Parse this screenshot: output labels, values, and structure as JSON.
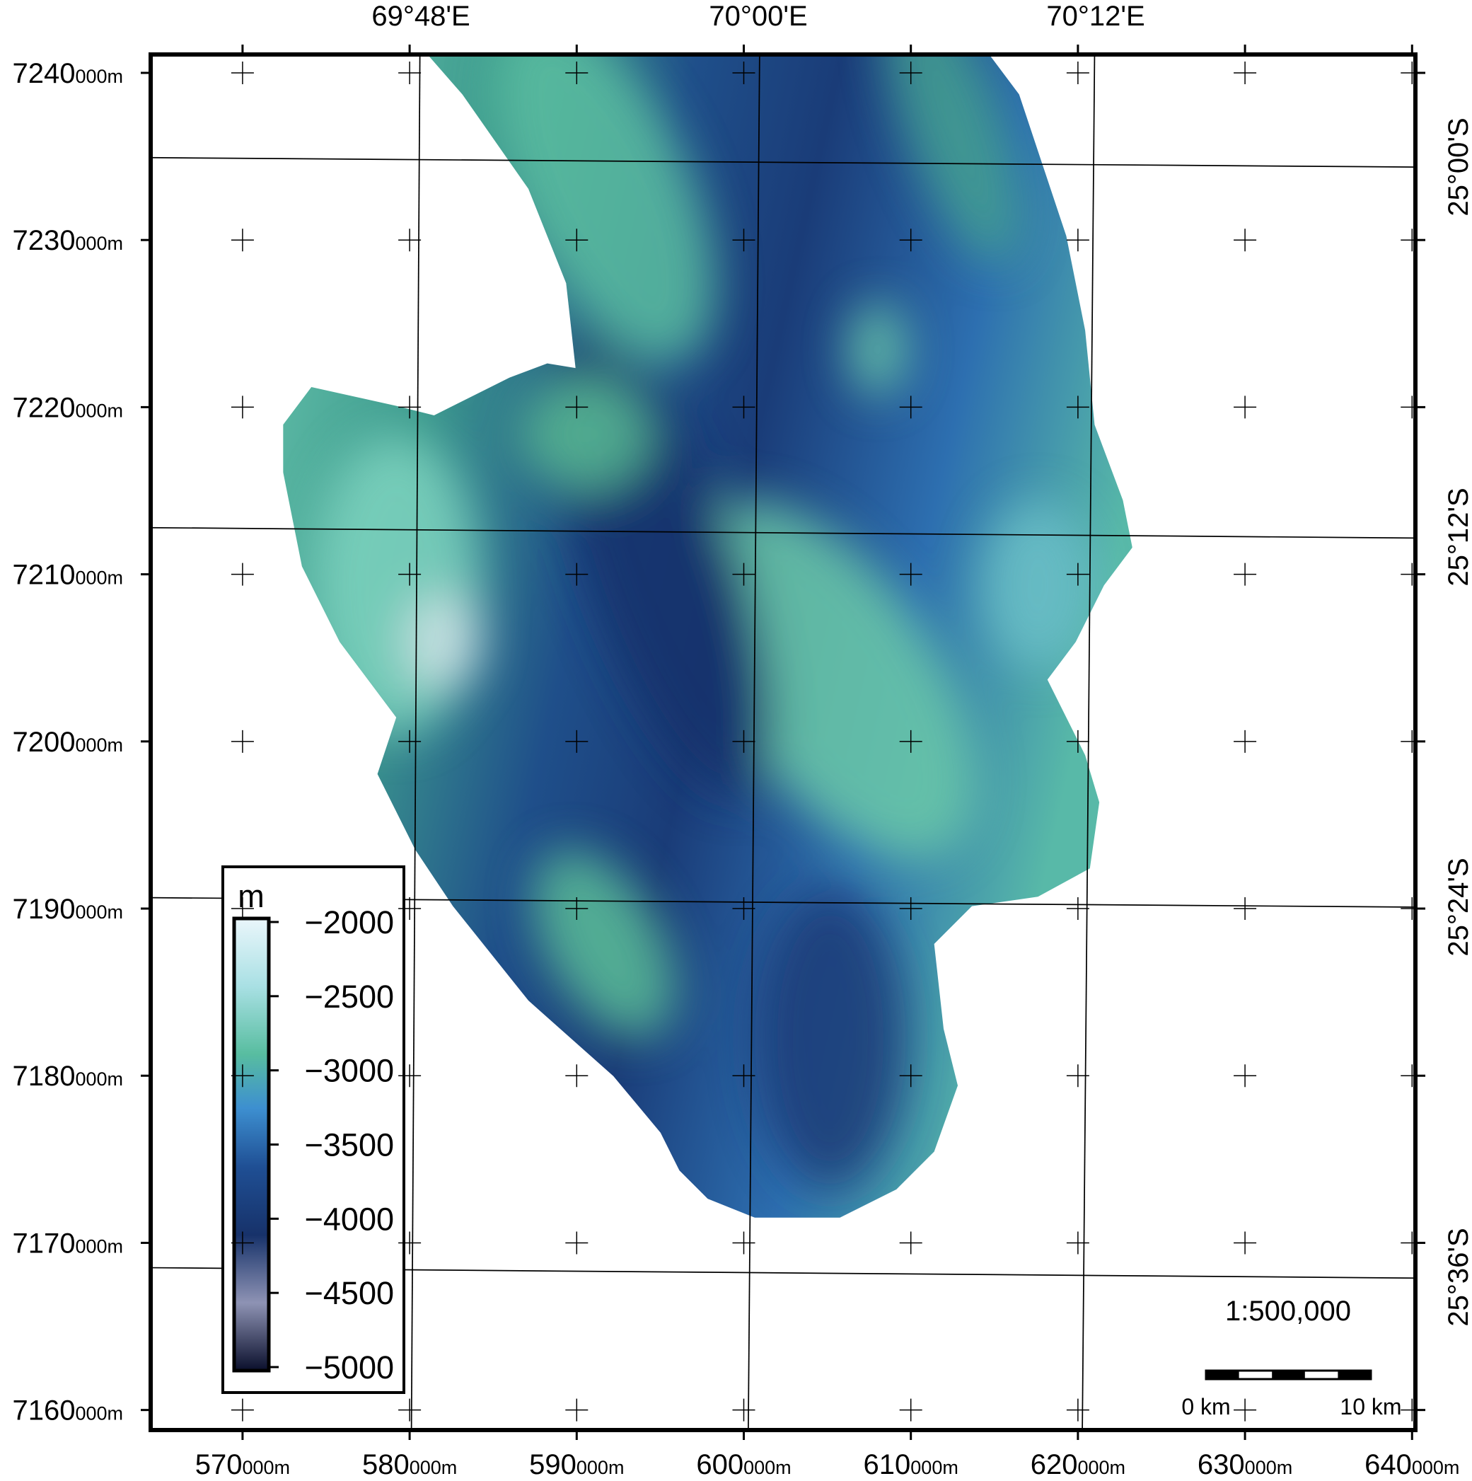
{
  "map": {
    "xlim": [
      564500,
      640200
    ],
    "ylim": [
      7158800,
      7241100
    ],
    "x_ticks": [
      {
        "value": 570000,
        "label": "570",
        "suffix": "000m"
      },
      {
        "value": 580000,
        "label": "580",
        "suffix": "000m"
      },
      {
        "value": 590000,
        "label": "590",
        "suffix": "000m"
      },
      {
        "value": 600000,
        "label": "600",
        "suffix": "000m"
      },
      {
        "value": 610000,
        "label": "610",
        "suffix": "000m"
      },
      {
        "value": 620000,
        "label": "620",
        "suffix": "000m"
      },
      {
        "value": 630000,
        "label": "630",
        "suffix": "000m"
      },
      {
        "value": 640000,
        "label": "640",
        "suffix": "000m"
      }
    ],
    "y_ticks": [
      {
        "value": 7160000,
        "label": "7160",
        "suffix": "000m"
      },
      {
        "value": 7170000,
        "label": "7170",
        "suffix": "000m"
      },
      {
        "value": 7180000,
        "label": "7180",
        "suffix": "000m"
      },
      {
        "value": 7190000,
        "label": "7190",
        "suffix": "000m"
      },
      {
        "value": 7200000,
        "label": "7200",
        "suffix": "000m"
      },
      {
        "value": 7210000,
        "label": "7210",
        "suffix": "000m"
      },
      {
        "value": 7220000,
        "label": "7220",
        "suffix": "000m"
      },
      {
        "value": 7230000,
        "label": "7230",
        "suffix": "000m"
      },
      {
        "value": 7240000,
        "label": "7240",
        "suffix": "000m"
      }
    ],
    "lon_labels": [
      "69°48'E",
      "70°00'E",
      "70°12'E"
    ],
    "lat_labels": [
      "25°00'S",
      "25°12'S",
      "25°24'S",
      "25°36'S"
    ],
    "colorbar": {
      "unit": "m",
      "lim": [
        -5000,
        -2000
      ],
      "ticks": [
        {
          "value": -2000,
          "label": "−2000"
        },
        {
          "value": -2500,
          "label": "−2500"
        },
        {
          "value": -3000,
          "label": "−3000"
        },
        {
          "value": -3500,
          "label": "−3500"
        },
        {
          "value": -4000,
          "label": "−4000"
        },
        {
          "value": -4500,
          "label": "−4500"
        },
        {
          "value": -5000,
          "label": "−5000"
        }
      ]
    },
    "scale": {
      "ratio": "1:500,000",
      "start": "0 km",
      "end": "10 km"
    }
  }
}
